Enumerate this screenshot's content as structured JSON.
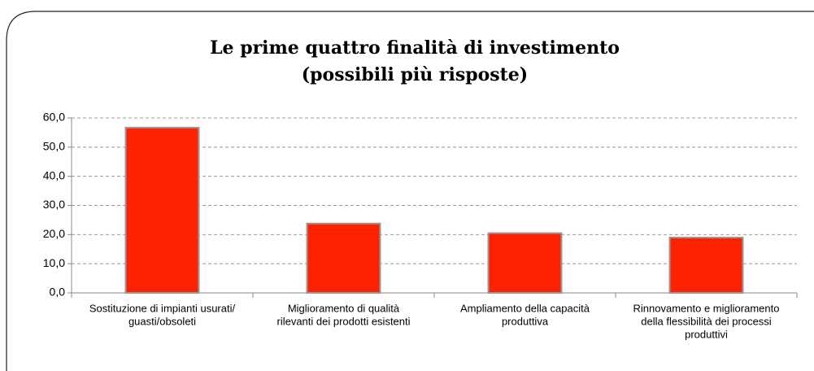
{
  "chart_data": {
    "type": "bar",
    "title": [
      "Le prime quattro finalità di investimento",
      "(possibili più risposte)"
    ],
    "categories": [
      [
        "Sostituzione di impianti usurati/",
        "guasti/obsoleti"
      ],
      [
        "Miglioramento di qualità",
        "rilevanti dei prodotti esistenti"
      ],
      [
        "Ampliamento della capacità",
        "produttiva"
      ],
      [
        "Rinnovamento e miglioramento",
        "della flessibilità dei processi",
        "produttivi"
      ]
    ],
    "values": [
      56.7,
      23.8,
      20.5,
      19.0
    ],
    "color": "#ff2200",
    "ylim": [
      0,
      60
    ],
    "yticks": [
      {
        "value": 0,
        "label": "0,0"
      },
      {
        "value": 10,
        "label": "10,0"
      },
      {
        "value": 20,
        "label": "20,0"
      },
      {
        "value": 30,
        "label": "30,0"
      },
      {
        "value": 40,
        "label": "40,0"
      },
      {
        "value": 50,
        "label": "50,0"
      },
      {
        "value": 60,
        "label": "60,0"
      }
    ],
    "grid": true
  }
}
